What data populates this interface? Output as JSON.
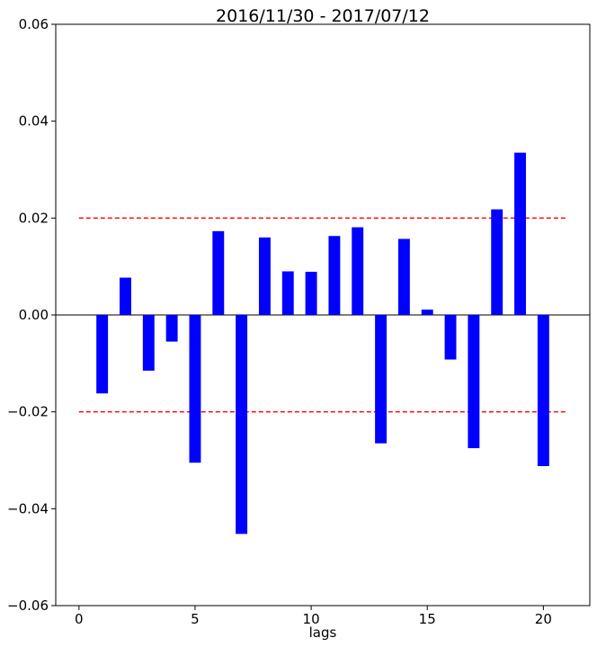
{
  "chart_data": {
    "type": "bar",
    "title": "2016/11/30 - 2017/07/12",
    "xlabel": "lags",
    "ylabel": "",
    "xlim": [
      -1,
      22
    ],
    "ylim": [
      -0.06,
      0.06
    ],
    "x_ticks": [
      0,
      5,
      10,
      15,
      20
    ],
    "x_tick_labels": [
      "0",
      "5",
      "10",
      "15",
      "20"
    ],
    "y_ticks": [
      -0.06,
      -0.04,
      -0.02,
      0.0,
      0.02,
      0.04,
      0.06
    ],
    "y_tick_labels": [
      "−0.06",
      "−0.04",
      "−0.02",
      "0.00",
      "0.02",
      "0.04",
      "0.06"
    ],
    "grid": false,
    "series": [
      {
        "color": "#0000ff",
        "x": [
          1,
          2,
          3,
          4,
          5,
          6,
          7,
          8,
          9,
          10,
          11,
          12,
          13,
          14,
          15,
          16,
          17,
          18,
          19,
          20
        ],
        "values": [
          -0.0162,
          0.0077,
          -0.0115,
          -0.0055,
          -0.0305,
          0.0173,
          -0.0452,
          0.016,
          0.009,
          0.0089,
          0.0163,
          0.0181,
          -0.0265,
          0.0157,
          0.0011,
          -0.0092,
          -0.0275,
          0.0218,
          0.0335,
          -0.0312
        ]
      }
    ],
    "reference_lines": [
      {
        "y": 0.02,
        "x_range": [
          0,
          21
        ],
        "style": "dashed",
        "color": "#ff0000"
      },
      {
        "y": -0.02,
        "x_range": [
          0,
          21
        ],
        "style": "dashed",
        "color": "#ff0000"
      },
      {
        "y": 0.0,
        "x_range": [
          -1,
          22
        ],
        "style": "solid",
        "color": "#333333"
      }
    ]
  }
}
